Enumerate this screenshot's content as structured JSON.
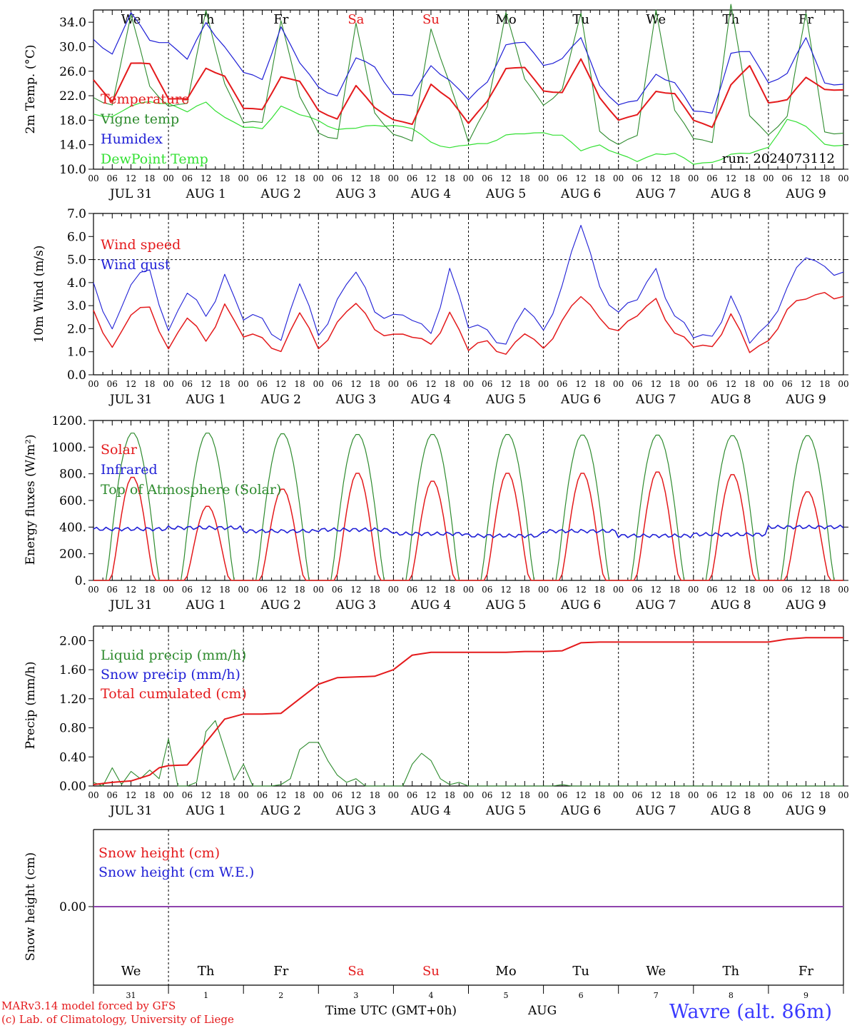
{
  "colors": {
    "red": "#e41a1c",
    "green": "#2e8b2e",
    "blue": "#1f1fd6",
    "lightgreen": "#33e033",
    "purple": "#8e44ad",
    "black": "#000000"
  },
  "run_label": "run: 2024073112",
  "days": [
    {
      "abbr": "We",
      "date": "JUL 31",
      "num": "31",
      "weekend": false
    },
    {
      "abbr": "Th",
      "date": "AUG  1",
      "num": "1",
      "weekend": false
    },
    {
      "abbr": "Fr",
      "date": "AUG  2",
      "num": "2",
      "weekend": false
    },
    {
      "abbr": "Sa",
      "date": "AUG  3",
      "num": "3",
      "weekend": true
    },
    {
      "abbr": "Su",
      "date": "AUG  4",
      "num": "4",
      "weekend": true
    },
    {
      "abbr": "Mo",
      "date": "AUG  5",
      "num": "5",
      "weekend": false
    },
    {
      "abbr": "Tu",
      "date": "AUG  6",
      "num": "6",
      "weekend": false
    },
    {
      "abbr": "We",
      "date": "AUG  7",
      "num": "7",
      "weekend": false
    },
    {
      "abbr": "Th",
      "date": "AUG  8",
      "num": "8",
      "weekend": false
    },
    {
      "abbr": "Fr",
      "date": "AUG  9",
      "num": "9",
      "weekend": false
    }
  ],
  "hour_ticks": [
    "00",
    "06",
    "12",
    "18"
  ],
  "footer": {
    "model": "MARv3.14 model forced by GFS",
    "credit": "(c) Lab. of Climatology, University of Liege",
    "time_axis": "Time UTC (GMT+0h)",
    "month": "AUG",
    "station": "Wavre (alt. 86m)"
  },
  "chart_data": [
    {
      "type": "line",
      "ylabel": "2m Temp. (°C)",
      "ylim": [
        10,
        36
      ],
      "yticks": [
        "10.0",
        "14.0",
        "18.0",
        "22.0",
        "26.0",
        "30.0",
        "34.0"
      ],
      "xlabel": "",
      "grid": "vertical dashed at midnight",
      "legend_position": "left",
      "series": [
        {
          "name": "Temperature",
          "color": "red",
          "x_hours": [
            0,
            6,
            12,
            18,
            24,
            30,
            36,
            42,
            48,
            54,
            60,
            66,
            72,
            78,
            84,
            90,
            96,
            102,
            108,
            114,
            120,
            126,
            132,
            138,
            144,
            150,
            156,
            162,
            168,
            174,
            180,
            186,
            192,
            198,
            204,
            210,
            216,
            222,
            228,
            234
          ],
          "values": [
            24.6,
            21,
            27.4,
            27.2,
            21.4,
            21.5,
            26.5,
            25.2,
            20,
            19.7,
            25,
            24.4,
            19.6,
            18.2,
            23.7,
            20,
            18,
            17.4,
            23.9,
            21.5,
            17.5,
            21,
            26.4,
            26.7,
            22.8,
            22.5,
            28,
            21.6,
            18,
            19,
            22.7,
            22.3,
            18,
            16.8,
            23.8,
            27,
            20.8,
            21.3,
            25,
            23
          ]
        },
        {
          "name": "Vigne temp",
          "color": "green",
          "x_hours": [
            0,
            6,
            12,
            18,
            24,
            30,
            36,
            42,
            48,
            54,
            60,
            66,
            72,
            78,
            84,
            90,
            96,
            102,
            108,
            114,
            120,
            126,
            132,
            138,
            144,
            150,
            156,
            162,
            168,
            174,
            180,
            186,
            192,
            198,
            204,
            210,
            216,
            222,
            228,
            234
          ],
          "values": [
            21.7,
            20.5,
            35.5,
            23.5,
            20,
            20.8,
            36,
            24,
            17.8,
            17.5,
            34,
            22,
            16,
            15,
            34,
            19,
            15.5,
            14.8,
            33,
            24,
            14.5,
            20,
            35.5,
            25,
            20.5,
            23,
            35.5,
            16,
            14,
            15.8,
            36,
            19.5,
            15,
            14.2,
            37,
            19,
            15.5,
            18.5,
            35.5,
            16
          ]
        },
        {
          "name": "Humidex",
          "color": "blue",
          "x_hours": [
            0,
            6,
            12,
            18,
            24,
            30,
            36,
            42,
            48,
            54,
            60,
            66,
            72,
            78,
            84,
            90,
            96,
            102,
            108,
            114,
            120,
            126,
            132,
            138,
            144,
            150,
            156,
            162,
            168,
            174,
            180,
            186,
            192,
            198,
            204,
            210,
            216,
            222,
            228,
            234
          ],
          "values": [
            31.2,
            28.8,
            35.8,
            31,
            30.4,
            28,
            34,
            30,
            26,
            24.5,
            33,
            27.5,
            23.5,
            22,
            28.3,
            26.5,
            22,
            22.2,
            27,
            24.5,
            21.4,
            24,
            30.2,
            31,
            27,
            28,
            31.5,
            23.5,
            20.5,
            21.5,
            25.5,
            24,
            19.5,
            19,
            29,
            29.5,
            24,
            25.5,
            31.5,
            24
          ]
        },
        {
          "name": "DewPoint Temp",
          "color": "lightgreen",
          "x_hours": [
            0,
            6,
            12,
            18,
            24,
            30,
            36,
            42,
            48,
            54,
            60,
            66,
            72,
            78,
            84,
            90,
            96,
            102,
            108,
            114,
            120,
            126,
            132,
            138,
            144,
            150,
            156,
            162,
            168,
            174,
            180,
            186,
            192,
            198,
            204,
            210,
            216,
            222,
            228,
            234
          ],
          "values": [
            19,
            18.6,
            20.5,
            21,
            20.5,
            19.4,
            21,
            18.5,
            17,
            16.5,
            20.1,
            19,
            18,
            16.5,
            16.8,
            17,
            17,
            16.8,
            14.5,
            13.5,
            14,
            14,
            15.5,
            16,
            16,
            15.5,
            13,
            13.8,
            12.5,
            11.5,
            12.5,
            12.5,
            10.8,
            11,
            12.5,
            12.8,
            13.5,
            18,
            17,
            14
          ]
        }
      ]
    },
    {
      "type": "line",
      "ylabel": "10m Wind (m/s)",
      "ylim": [
        0,
        7
      ],
      "yticks": [
        "0.0",
        "1.0",
        "2.0",
        "3.0",
        "4.0",
        "5.0",
        "6.0",
        "7.0"
      ],
      "reference_line": 5,
      "legend_position": "left",
      "series": [
        {
          "name": "Wind speed",
          "color": "red",
          "x_hours": [
            0,
            6,
            12,
            18,
            24,
            30,
            36,
            42,
            48,
            54,
            60,
            66,
            72,
            78,
            84,
            90,
            96,
            102,
            108,
            114,
            120,
            126,
            132,
            138,
            144,
            150,
            156,
            162,
            168,
            174,
            180,
            186,
            192,
            198,
            204,
            210,
            216,
            222,
            228,
            234
          ],
          "values": [
            2.8,
            1.2,
            2.8,
            2.9,
            0.9,
            2.5,
            1.5,
            3.1,
            1.8,
            1.5,
            0.8,
            2.8,
            1.2,
            2.3,
            3.2,
            1.8,
            1.6,
            1.8,
            1.4,
            2.7,
            1.1,
            1.3,
            0.8,
            2,
            1.2,
            2.3,
            3.4,
            2.3,
            1.9,
            2.8,
            3.3,
            1.7,
            1.2,
            1.1,
            2.7,
            1.2,
            1.4,
            2.7,
            3.3,
            3.5
          ]
        },
        {
          "name": "Wind gust",
          "color": "blue",
          "x_hours": [
            0,
            6,
            12,
            18,
            24,
            30,
            36,
            42,
            48,
            54,
            60,
            66,
            72,
            78,
            84,
            90,
            96,
            102,
            108,
            114,
            120,
            126,
            132,
            138,
            144,
            150,
            156,
            162,
            168,
            174,
            180,
            186,
            192,
            198,
            204,
            210,
            216,
            222,
            228,
            234
          ],
          "values": [
            4,
            2,
            4.2,
            4.5,
            1.6,
            3.6,
            2.6,
            4.4,
            2.6,
            2.3,
            1.2,
            4.1,
            1.8,
            3.3,
            4.6,
            2.5,
            2.4,
            2.6,
            1.9,
            4.6,
            2.1,
            1.7,
            1.2,
            3.2,
            2,
            3.8,
            6.5,
            3.6,
            2.7,
            3.6,
            4.6,
            2.4,
            1.6,
            1.5,
            3.5,
            1.7,
            2.1,
            3.6,
            5.1,
            4.6
          ]
        }
      ]
    },
    {
      "type": "line",
      "ylabel": "Energy fluxes (W/m²)",
      "ylim": [
        0,
        1200
      ],
      "yticks": [
        "0.",
        "200.",
        "400.",
        "600.",
        "800.",
        "1000.",
        "1200."
      ],
      "legend_position": "left",
      "series": [
        {
          "name": "Solar",
          "color": "red",
          "daily_peak": [
            780,
            560,
            690,
            810,
            750,
            810,
            810,
            820,
            800,
            670
          ]
        },
        {
          "name": "Infrared",
          "color": "blue",
          "daily_mean": [
            385,
            395,
            370,
            380,
            350,
            335,
            370,
            335,
            345,
            400
          ]
        },
        {
          "name": "Top of Atmosphere (Solar)",
          "color": "green",
          "daily_peak": [
            1110,
            1110,
            1105,
            1100,
            1100,
            1100,
            1095,
            1095,
            1090,
            1090
          ]
        }
      ]
    },
    {
      "type": "line",
      "ylabel": "Precip (mm/h)",
      "ylim": [
        0,
        2.2
      ],
      "yticks": [
        "0.00",
        "0.40",
        "0.80",
        "1.20",
        "1.60",
        "2.00"
      ],
      "legend_position": "left",
      "series": [
        {
          "name": "Liquid precip (mm/h)",
          "color": "green",
          "x_hours": [
            0,
            3,
            6,
            9,
            12,
            15,
            18,
            21,
            24,
            27,
            30,
            33,
            36,
            39,
            42,
            45,
            48,
            51,
            54,
            57,
            60,
            63,
            66,
            69,
            72,
            75,
            78,
            81,
            84,
            87,
            90,
            93,
            96,
            99,
            102,
            105,
            108,
            111,
            114,
            117,
            120,
            123,
            126,
            129,
            132,
            135,
            138,
            141,
            144,
            147,
            150,
            153,
            156,
            159,
            162,
            165,
            168,
            171,
            174,
            177,
            180,
            183,
            186,
            189,
            192,
            195,
            198,
            201,
            204,
            207,
            210,
            213,
            216,
            219,
            222,
            225,
            228,
            231,
            234,
            237,
            240
          ],
          "values": [
            0.05,
            0,
            0.25,
            0.02,
            0.2,
            0.1,
            0.22,
            0.1,
            0.65,
            0,
            0,
            0.05,
            0.75,
            0.9,
            0.5,
            0.08,
            0.3,
            0,
            0,
            0,
            0.02,
            0.1,
            0.5,
            0.6,
            0.6,
            0.35,
            0.15,
            0.05,
            0.1,
            0,
            0,
            0,
            0,
            0,
            0.3,
            0.45,
            0.35,
            0.1,
            0.02,
            0.05,
            0,
            0,
            0,
            0,
            0,
            0,
            0,
            0,
            0,
            0,
            0.02,
            0,
            0,
            0,
            0,
            0,
            0,
            0,
            0,
            0,
            0,
            0,
            0,
            0,
            0,
            0,
            0,
            0,
            0,
            0,
            0,
            0,
            0,
            0,
            0,
            0,
            0,
            0,
            0,
            0,
            0
          ]
        },
        {
          "name": "Snow precip (mm/h)",
          "color": "blue",
          "values": []
        },
        {
          "name": "Total cumulated (cm)",
          "color": "red",
          "x_hours": [
            0,
            6,
            12,
            18,
            21,
            24,
            30,
            36,
            42,
            48,
            54,
            60,
            66,
            72,
            78,
            84,
            90,
            96,
            102,
            108,
            114,
            120,
            126,
            132,
            138,
            144,
            150,
            156,
            162,
            168,
            174,
            180,
            186,
            192,
            198,
            204,
            210,
            216,
            222,
            228,
            234,
            240
          ],
          "values": [
            0.02,
            0.05,
            0.07,
            0.15,
            0.25,
            0.28,
            0.29,
            0.6,
            0.92,
            0.99,
            0.99,
            1,
            1.2,
            1.4,
            1.49,
            1.5,
            1.51,
            1.6,
            1.8,
            1.84,
            1.84,
            1.84,
            1.84,
            1.84,
            1.85,
            1.85,
            1.86,
            1.97,
            1.98,
            1.98,
            1.98,
            1.98,
            1.98,
            1.98,
            1.98,
            1.98,
            1.98,
            1.98,
            2.02,
            2.04,
            2.04,
            2.04
          ]
        }
      ]
    },
    {
      "type": "line",
      "ylabel": "Snow height (cm)",
      "yticks": [
        "0.00"
      ],
      "legend_position": "left",
      "series": [
        {
          "name": "Snow height (cm)",
          "color": "red",
          "values": [
            0
          ]
        },
        {
          "name": "Snow height (cm W.E.)",
          "color": "blue",
          "values": [
            0
          ]
        }
      ]
    }
  ]
}
